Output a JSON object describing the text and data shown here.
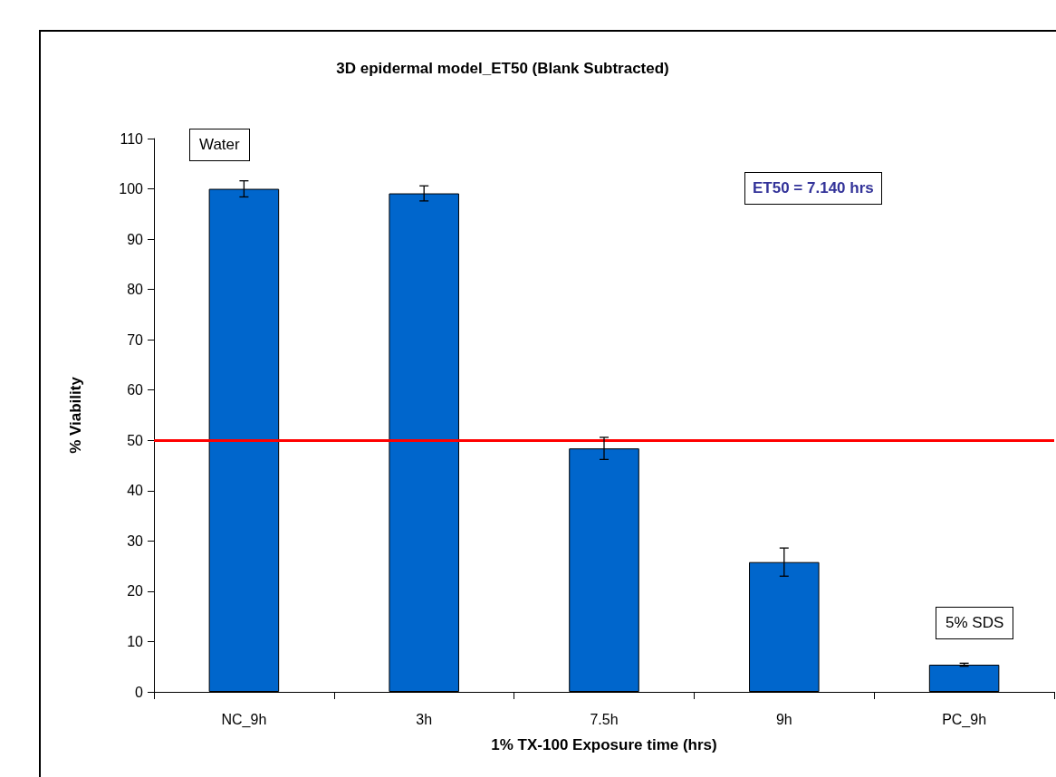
{
  "chart_data": {
    "type": "bar",
    "title": "3D epidermal model_ET50 (Blank Subtracted)",
    "xlabel": "1% TX-100 Exposure time (hrs)",
    "ylabel": "% Viability",
    "categories": [
      "NC_9h",
      "3h",
      "7.5h",
      "9h",
      "PC_9h"
    ],
    "values": [
      100,
      99.1,
      48.4,
      25.8,
      5.4
    ],
    "errors": [
      1.6,
      1.5,
      2.2,
      2.8,
      0.3
    ],
    "color": "#0066cc",
    "ylim": [
      0,
      110
    ],
    "yticks": [
      0,
      10,
      20,
      30,
      40,
      50,
      60,
      70,
      80,
      90,
      100,
      110
    ],
    "grid": false,
    "ref_lines": [
      {
        "axis": "y",
        "value": 50,
        "color": "#ff0000",
        "line_style": "solid"
      }
    ],
    "annotations": [
      "Water",
      "5% SDS",
      "ET50 = 7.140 hrs"
    ]
  }
}
